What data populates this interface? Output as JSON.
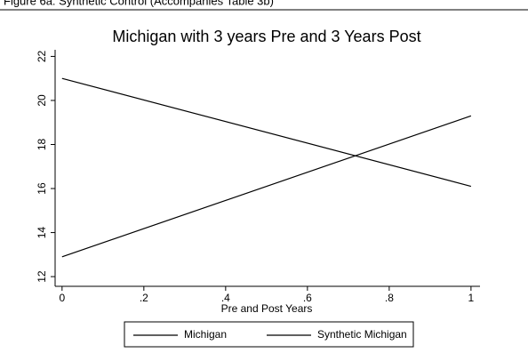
{
  "header": "Figure 6a: Synthetic Control (Accompanies Table 3b)",
  "chart_data": {
    "type": "line",
    "title": "Michigan with 3 years Pre and 3 Years Post",
    "x_label": "Pre and Post Years",
    "x": [
      0,
      1
    ],
    "series": [
      {
        "name": "Michigan",
        "color": "#000000",
        "values": [
          21,
          16.1
        ]
      },
      {
        "name": "Synthetic Michigan",
        "color": "#000000",
        "values": [
          12.9,
          19.3
        ]
      }
    ],
    "xlim": [
      -0.017,
      1.022
    ],
    "xticks": [
      0,
      {
        "value": 0.2,
        "label": ".2"
      },
      {
        "value": 0.4,
        "label": ".4"
      },
      {
        "value": 0.6,
        "label": ".6"
      },
      {
        "value": 0.8,
        "label": ".8"
      },
      1
    ],
    "ylim": [
      11.56,
      22.3
    ],
    "yticks": [
      12,
      14,
      16,
      18,
      20,
      22
    ],
    "grid": false,
    "legend": "bottom"
  }
}
